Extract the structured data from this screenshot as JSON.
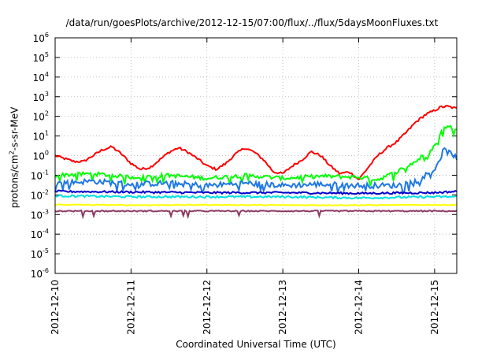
{
  "chart_data": {
    "type": "line",
    "title": "/data/run/goesPlots/archive/2012-12-15/07:00/flux/../flux/5daysMoonFluxes.txt",
    "xlabel": "Coordinated Universal Time (UTC)",
    "ylabel": {
      "prefix": "protons/cm",
      "sup": "2",
      "suffix": "-s-sr-MeV"
    },
    "y_scale": "log",
    "ylim": [
      1e-06,
      1000000.0
    ],
    "y_ticks": [
      {
        "exp": -6,
        "label_base": "10",
        "label_exp": "-6"
      },
      {
        "exp": -5,
        "label_base": "10",
        "label_exp": "-5"
      },
      {
        "exp": -4,
        "label_base": "10",
        "label_exp": "-4"
      },
      {
        "exp": -3,
        "label_base": "10",
        "label_exp": "-3"
      },
      {
        "exp": -2,
        "label_base": "10",
        "label_exp": "-2"
      },
      {
        "exp": -1,
        "label_base": "10",
        "label_exp": "-1"
      },
      {
        "exp": 0,
        "label_base": "10",
        "label_exp": "0"
      },
      {
        "exp": 1,
        "label_base": "10",
        "label_exp": "1"
      },
      {
        "exp": 2,
        "label_base": "10",
        "label_exp": "2"
      },
      {
        "exp": 3,
        "label_base": "10",
        "label_exp": "3"
      },
      {
        "exp": 4,
        "label_base": "10",
        "label_exp": "4"
      },
      {
        "exp": 5,
        "label_base": "10",
        "label_exp": "5"
      },
      {
        "exp": 6,
        "label_base": "10",
        "label_exp": "6"
      }
    ],
    "x_ticks": [
      "2012-12-10",
      "2012-12-11",
      "2012-12-12",
      "2012-12-13",
      "2012-12-14",
      "2012-12-15"
    ],
    "xlim": [
      "2012-12-10 00:00",
      "2012-12-15 07:00"
    ],
    "grid": true,
    "series": [
      {
        "color": "#ff0000",
        "x": [
          "2012-12-10 00:00",
          "2012-12-10 03:00",
          "2012-12-10 06:00",
          "2012-12-10 09:00",
          "2012-12-10 12:00",
          "2012-12-10 15:00",
          "2012-12-10 18:00",
          "2012-12-10 21:00",
          "2012-12-11 00:00",
          "2012-12-11 03:00",
          "2012-12-11 06:00",
          "2012-12-11 09:00",
          "2012-12-11 12:00",
          "2012-12-11 15:00",
          "2012-12-11 18:00",
          "2012-12-11 21:00",
          "2012-12-12 00:00",
          "2012-12-12 03:00",
          "2012-12-12 06:00",
          "2012-12-12 09:00",
          "2012-12-12 12:00",
          "2012-12-12 15:00",
          "2012-12-12 18:00",
          "2012-12-12 21:00",
          "2012-12-13 00:00",
          "2012-12-13 03:00",
          "2012-12-13 06:00",
          "2012-12-13 09:00",
          "2012-12-13 12:00",
          "2012-12-13 15:00",
          "2012-12-13 18:00",
          "2012-12-13 21:00",
          "2012-12-14 00:00",
          "2012-12-14 03:00",
          "2012-12-14 06:00",
          "2012-12-14 09:00",
          "2012-12-14 12:00",
          "2012-12-14 15:00",
          "2012-12-14 18:00",
          "2012-12-14 21:00",
          "2012-12-15 00:00",
          "2012-12-15 02:00",
          "2012-12-15 04:00",
          "2012-12-15 07:00"
        ],
        "y": [
          1.0,
          0.7,
          0.5,
          0.5,
          1.0,
          2.0,
          2.8,
          1.2,
          0.4,
          0.2,
          0.25,
          0.6,
          1.5,
          2.5,
          1.5,
          0.7,
          0.3,
          0.2,
          0.4,
          1.2,
          2.5,
          1.5,
          0.6,
          0.15,
          0.12,
          0.3,
          0.6,
          1.6,
          1.0,
          0.3,
          0.12,
          0.15,
          0.06,
          0.25,
          1.0,
          2.5,
          5.0,
          15,
          50,
          120,
          200,
          300,
          320,
          250
        ]
      },
      {
        "color": "#00ff00",
        "x": [
          "2012-12-10 00:00",
          "2012-12-10 12:00",
          "2012-12-11 00:00",
          "2012-12-11 12:00",
          "2012-12-12 00:00",
          "2012-12-12 12:00",
          "2012-12-13 00:00",
          "2012-12-13 12:00",
          "2012-12-14 00:00",
          "2012-12-14 06:00",
          "2012-12-14 12:00",
          "2012-12-14 18:00",
          "2012-12-15 00:00",
          "2012-12-15 03:00",
          "2012-12-15 07:00"
        ],
        "y": [
          0.1,
          0.12,
          0.08,
          0.1,
          0.07,
          0.1,
          0.07,
          0.09,
          0.08,
          0.06,
          0.15,
          0.5,
          3,
          30,
          25
        ]
      },
      {
        "color": "#1e78e6",
        "x": [
          "2012-12-10 00:00",
          "2012-12-10 12:00",
          "2012-12-11 00:00",
          "2012-12-11 12:00",
          "2012-12-12 00:00",
          "2012-12-12 12:00",
          "2012-12-13 00:00",
          "2012-12-13 12:00",
          "2012-12-14 00:00",
          "2012-12-14 12:00",
          "2012-12-14 18:00",
          "2012-12-15 00:00",
          "2012-12-15 03:00",
          "2012-12-15 07:00"
        ],
        "y": [
          0.04,
          0.05,
          0.035,
          0.04,
          0.03,
          0.04,
          0.03,
          0.035,
          0.03,
          0.03,
          0.05,
          0.2,
          2.0,
          0.8
        ]
      },
      {
        "color": "#0000cc",
        "x": [
          "2012-12-10 00:00",
          "2012-12-11 00:00",
          "2012-12-12 00:00",
          "2012-12-13 00:00",
          "2012-12-14 00:00",
          "2012-12-15 00:00",
          "2012-12-15 07:00"
        ],
        "y": [
          0.015,
          0.014,
          0.013,
          0.013,
          0.012,
          0.013,
          0.015
        ]
      },
      {
        "color": "#00e0e0",
        "x": [
          "2012-12-10 00:00",
          "2012-12-11 00:00",
          "2012-12-12 00:00",
          "2012-12-13 00:00",
          "2012-12-14 00:00",
          "2012-12-15 00:00",
          "2012-12-15 07:00"
        ],
        "y": [
          0.009,
          0.008,
          0.008,
          0.008,
          0.007,
          0.008,
          0.008
        ]
      },
      {
        "color": "#ffff00",
        "x": [
          "2012-12-10 00:00",
          "2012-12-11 00:00",
          "2012-12-12 00:00",
          "2012-12-13 00:00",
          "2012-12-14 00:00",
          "2012-12-15 00:00",
          "2012-12-15 07:00"
        ],
        "y": [
          0.0032,
          0.003,
          0.0031,
          0.003,
          0.003,
          0.0031,
          0.0031
        ]
      },
      {
        "color": "#8b3a62",
        "x": [
          "2012-12-10 00:00",
          "2012-12-11 00:00",
          "2012-12-12 00:00",
          "2012-12-13 00:00",
          "2012-12-14 00:00",
          "2012-12-15 00:00",
          "2012-12-15 07:00"
        ],
        "y": [
          0.0015,
          0.0015,
          0.0015,
          0.0015,
          0.0015,
          0.0015,
          0.0015
        ]
      }
    ]
  }
}
